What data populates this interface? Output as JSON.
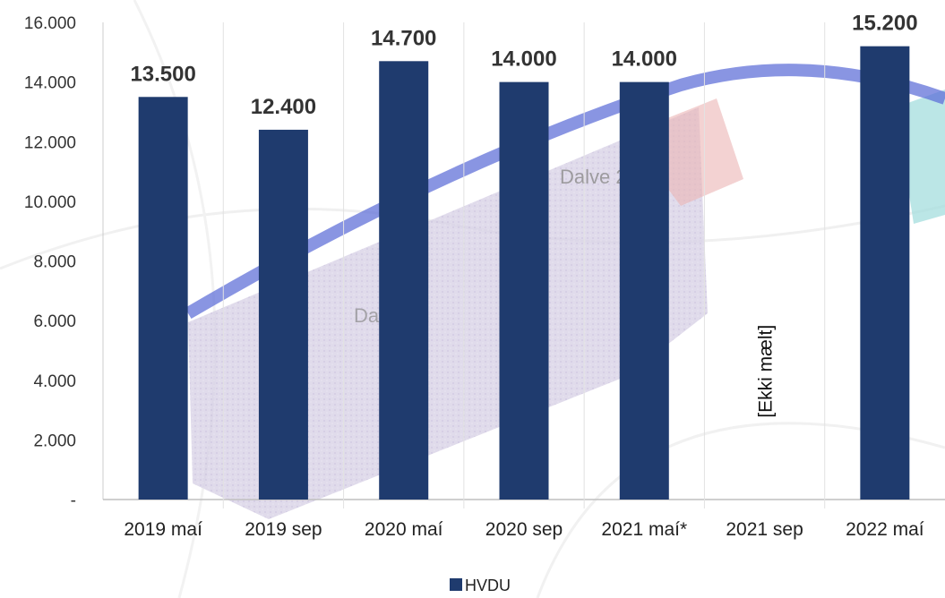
{
  "chart_data": {
    "type": "bar",
    "categories": [
      "2019 maí",
      "2019 sep",
      "2020 maí",
      "2020 sep",
      "2021 maí*",
      "2021 sep",
      "2022 maí"
    ],
    "series": [
      {
        "name": "HVDU",
        "values": [
          13500,
          12400,
          14700,
          14000,
          14000,
          null,
          15200
        ]
      }
    ],
    "data_labels": [
      "13.500",
      "12.400",
      "14.700",
      "14.000",
      "14.000",
      "",
      "15.200"
    ],
    "y_ticks": [
      "-",
      "2.000",
      "4.000",
      "6.000",
      "8.000",
      "10.000",
      "12.000",
      "14.000",
      "16.000"
    ],
    "ylim": [
      0,
      16000
    ],
    "annotations": [
      {
        "category": "2021 sep",
        "text": "[Ekki mælt]"
      }
    ],
    "legend": {
      "position": "bottom"
    },
    "grid": {
      "vertical_separators": true,
      "horizontal": false
    },
    "colors": {
      "bar": "#1f3b6e",
      "background_image": "map-overlay"
    }
  }
}
